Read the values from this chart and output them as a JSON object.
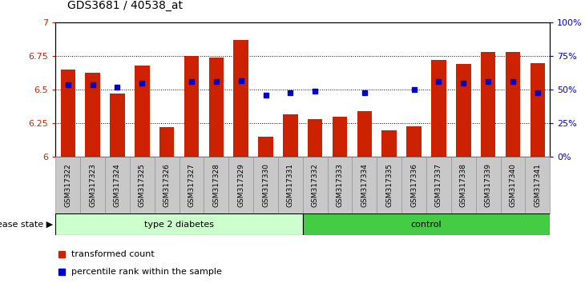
{
  "title": "GDS3681 / 40538_at",
  "samples": [
    "GSM317322",
    "GSM317323",
    "GSM317324",
    "GSM317325",
    "GSM317326",
    "GSM317327",
    "GSM317328",
    "GSM317329",
    "GSM317330",
    "GSM317331",
    "GSM317332",
    "GSM317333",
    "GSM317334",
    "GSM317335",
    "GSM317336",
    "GSM317337",
    "GSM317338",
    "GSM317339",
    "GSM317340",
    "GSM317341"
  ],
  "red_values": [
    6.65,
    6.63,
    6.47,
    6.68,
    6.22,
    6.75,
    6.74,
    6.87,
    6.15,
    6.32,
    6.28,
    6.3,
    6.34,
    6.2,
    6.23,
    6.72,
    6.69,
    6.78,
    6.78,
    6.7
  ],
  "blue_values": [
    6.54,
    6.54,
    6.52,
    6.55,
    null,
    6.56,
    6.56,
    6.57,
    6.46,
    6.48,
    6.49,
    null,
    6.48,
    null,
    6.5,
    6.56,
    6.55,
    6.56,
    6.56,
    6.48
  ],
  "ylim_left": [
    6.0,
    7.0
  ],
  "ylim_right": [
    0,
    100
  ],
  "yticks_left": [
    6.0,
    6.25,
    6.5,
    6.75,
    7.0
  ],
  "yticks_right": [
    0,
    25,
    50,
    75,
    100
  ],
  "ytick_labels_left": [
    "6",
    "6.25",
    "6.5",
    "6.75",
    "7"
  ],
  "ytick_labels_right": [
    "0%",
    "25%",
    "50%",
    "75%",
    "100%"
  ],
  "group1_label": "type 2 diabetes",
  "group2_label": "control",
  "group1_count": 10,
  "group2_count": 10,
  "legend_red": "transformed count",
  "legend_blue": "percentile rank within the sample",
  "disease_state_label": "disease state",
  "bar_color": "#CC2200",
  "dot_color": "#0000CC",
  "group1_bg_light": "#CCFFCC",
  "group2_bg": "#44CC44",
  "xlabel_bg": "#C8C8C8",
  "bar_bottom": 6.0,
  "bar_width": 0.6
}
